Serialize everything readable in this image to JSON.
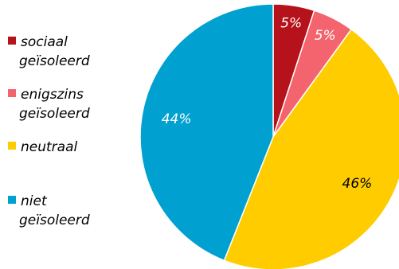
{
  "chart_data": {
    "type": "pie",
    "title": "",
    "legend_position": "left",
    "start_angle_deg": 0,
    "direction": "clockwise",
    "slices": [
      {
        "name": "sociaal geïsoleerd",
        "label_lines": [
          "sociaal",
          "geïsoleerd"
        ],
        "value": 5,
        "label": "5%",
        "color": "#b5121b",
        "label_color": "#ffffff"
      },
      {
        "name": "enigszins geïsoleerd",
        "label_lines": [
          "enigszins",
          "geïsoleerd"
        ],
        "value": 5,
        "label": "5%",
        "color": "#f4646e",
        "label_color": "#ffffff"
      },
      {
        "name": "neutraal",
        "label_lines": [
          "neutraal"
        ],
        "value": 46,
        "label": "46%",
        "color": "#ffcc00",
        "label_color": "#000000"
      },
      {
        "name": "niet geïsoleerd",
        "label_lines": [
          "niet",
          "geïsoleerd"
        ],
        "value": 44,
        "label": "44%",
        "color": "#00a0d0",
        "label_color": "#ffffff"
      }
    ]
  }
}
